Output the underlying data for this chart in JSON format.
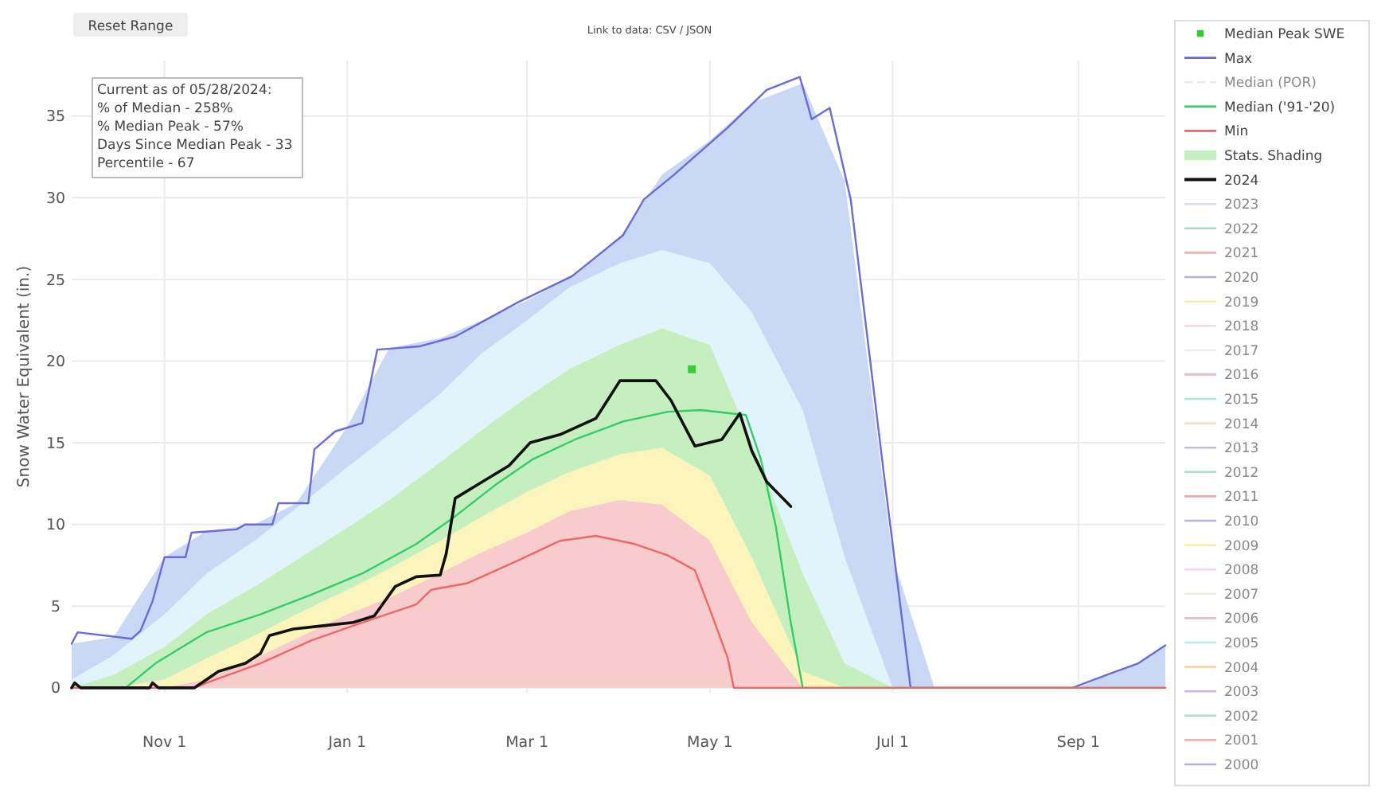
{
  "chart_data": {
    "type": "line",
    "ylabel": "Snow Water Equivalent (in.)",
    "annotations": [
      "Reset Range",
      "Link to data: CSV / JSON",
      "Current as of 05/28/2024:\n% of Median - 258%\n% Median Peak - 57%\nDays Since Median Peak - 33\nPercentile - 67"
    ],
    "xlim": [
      "2023-10-01",
      "2024-09-30"
    ],
    "xticks": [
      {
        "value": "2023-11-01",
        "label": "Nov 1"
      },
      {
        "value": "2024-01-01",
        "label": "Jan 1"
      },
      {
        "value": "2024-03-01",
        "label": "Mar 1"
      },
      {
        "value": "2024-05-01",
        "label": "May 1"
      },
      {
        "value": "2024-07-01",
        "label": "Jul 1"
      },
      {
        "value": "2024-09-01",
        "label": "Sep 1"
      }
    ],
    "ylim": [
      -0.3,
      38.4
    ],
    "yticks": [
      0,
      5,
      10,
      15,
      20,
      25,
      30,
      35
    ],
    "grid": true,
    "legend": "right",
    "series": [
      {
        "type": "area",
        "color": "#c9d8f5",
        "x": [
          "2023-10-01",
          "2023-10-15",
          "2023-11-01",
          "2023-11-15",
          "2023-12-01",
          "2023-12-15",
          "2024-01-01",
          "2024-01-15",
          "2024-02-01",
          "2024-02-15",
          "2024-03-01",
          "2024-03-15",
          "2024-04-01",
          "2024-04-15",
          "2024-05-01",
          "2024-05-15",
          "2024-06-01",
          "2024-06-15",
          "2024-07-01",
          "2024-07-15",
          "2024-09-01",
          "2024-09-12",
          "2024-09-21",
          "2024-09-30"
        ],
        "values": [
          2.7,
          3.1,
          8.0,
          9.6,
          10.0,
          11.3,
          16.0,
          20.8,
          21.4,
          22.5,
          23.7,
          25.1,
          27.6,
          31.4,
          33.5,
          35.8,
          37.0,
          31.0,
          8.0,
          0,
          0,
          0.9,
          1.5,
          2.6
        ]
      },
      {
        "type": "area",
        "color": "#e2f4fb",
        "x": [
          "2023-10-01",
          "2023-10-15",
          "2023-11-01",
          "2023-11-15",
          "2023-12-01",
          "2023-12-15",
          "2024-01-01",
          "2024-01-15",
          "2024-02-01",
          "2024-02-15",
          "2024-03-01",
          "2024-03-15",
          "2024-04-01",
          "2024-04-15",
          "2024-05-01",
          "2024-05-15",
          "2024-06-01",
          "2024-06-15",
          "2024-07-01",
          "2024-09-30"
        ],
        "values": [
          0.5,
          2.0,
          4.5,
          7.0,
          9.0,
          11.0,
          13.5,
          15.5,
          18.0,
          20.5,
          22.5,
          24.5,
          26.0,
          26.8,
          26.0,
          23.0,
          17.0,
          8.0,
          0,
          0
        ]
      },
      {
        "type": "area",
        "color": "#fbf4bd",
        "x": [
          "2023-10-01",
          "2023-10-15",
          "2023-11-01",
          "2023-11-15",
          "2023-12-01",
          "2023-12-15",
          "2024-01-01",
          "2024-01-15",
          "2024-02-01",
          "2024-02-15",
          "2024-03-01",
          "2024-03-15",
          "2024-04-01",
          "2024-04-15",
          "2024-05-01",
          "2024-05-15",
          "2024-06-01",
          "2024-06-15",
          "2024-07-01",
          "2024-09-30"
        ],
        "values": [
          0,
          0,
          0.5,
          1.8,
          3.2,
          4.5,
          6.0,
          7.3,
          9.0,
          10.5,
          12.0,
          13.2,
          14.3,
          14.7,
          13.0,
          8.0,
          1.0,
          0,
          0,
          0
        ]
      },
      {
        "type": "area",
        "color": "#f8cccc",
        "x": [
          "2023-10-01",
          "2023-10-15",
          "2023-11-01",
          "2023-11-15",
          "2023-12-01",
          "2023-12-15",
          "2024-01-01",
          "2024-01-15",
          "2024-02-01",
          "2024-02-15",
          "2024-03-01",
          "2024-03-15",
          "2024-04-01",
          "2024-04-15",
          "2024-05-01",
          "2024-05-15",
          "2024-06-01",
          "2024-06-15",
          "2024-07-01",
          "2024-09-30"
        ],
        "values": [
          0,
          0,
          0,
          0.5,
          1.8,
          3.0,
          4.5,
          5.5,
          7.0,
          8.3,
          9.5,
          10.8,
          11.5,
          11.2,
          9.0,
          4.0,
          0,
          0,
          0,
          0
        ]
      },
      {
        "name": "Median Peak SWE",
        "type": "scatter",
        "marker": "square",
        "color": "#33cc33",
        "x": [
          "2024-04-25"
        ],
        "values": [
          19.5
        ]
      },
      {
        "name": "Max",
        "type": "line",
        "color": "#6a6ad8",
        "x": [
          "2023-10-01",
          "2023-10-03",
          "2023-10-21",
          "2023-10-24",
          "2023-10-28",
          "2023-11-01",
          "2023-11-08",
          "2023-11-10",
          "2023-11-25",
          "2023-11-28",
          "2023-12-07",
          "2023-12-09",
          "2023-12-19",
          "2023-12-21",
          "2023-12-28",
          "2024-01-06",
          "2024-01-11",
          "2024-01-25",
          "2024-02-06",
          "2024-02-27",
          "2024-03-16",
          "2024-04-02",
          "2024-04-09",
          "2024-04-19",
          "2024-05-07",
          "2024-05-20",
          "2024-05-31",
          "2024-06-04",
          "2024-06-10",
          "2024-06-17",
          "2024-06-28",
          "2024-07-07",
          "2024-08-30",
          "2024-09-12",
          "2024-09-21",
          "2024-09-30"
        ],
        "values": [
          2.7,
          3.4,
          3.0,
          3.5,
          5.3,
          8.0,
          8.0,
          9.5,
          9.7,
          10.0,
          10.0,
          11.3,
          11.3,
          14.6,
          15.7,
          16.2,
          20.7,
          20.9,
          21.5,
          23.6,
          25.2,
          27.7,
          29.9,
          31.4,
          34.3,
          36.6,
          37.4,
          34.8,
          35.5,
          29.9,
          13.2,
          0,
          0,
          0.9,
          1.5,
          2.6
        ]
      },
      {
        "name": "Median (POR)",
        "type": "line",
        "line_style": "dashed",
        "color": "#b8e0b8"
      },
      {
        "name": "Median ('91-'20)",
        "type": "line",
        "color": "#33cc66",
        "x": [
          "2023-10-01",
          "2023-10-19",
          "2023-10-29",
          "2023-11-15",
          "2023-12-03",
          "2023-12-20",
          "2024-01-06",
          "2024-01-24",
          "2024-02-06",
          "2024-02-20",
          "2024-03-03",
          "2024-03-17",
          "2024-04-02",
          "2024-04-17",
          "2024-04-28",
          "2024-05-13",
          "2024-05-18",
          "2024-05-23",
          "2024-05-28",
          "2024-06-01",
          "2024-09-30"
        ],
        "values": [
          0,
          0,
          1.5,
          3.4,
          4.5,
          5.7,
          7.0,
          8.8,
          10.5,
          12.5,
          14.0,
          15.2,
          16.3,
          16.9,
          17.0,
          16.7,
          14.0,
          9.9,
          4.0,
          0,
          0
        ]
      },
      {
        "name": "Min",
        "type": "line",
        "color": "#ee6666",
        "x": [
          "2023-10-01",
          "2023-11-11",
          "2023-11-15",
          "2023-12-03",
          "2023-12-20",
          "2024-01-06",
          "2024-01-24",
          "2024-01-29",
          "2024-02-10",
          "2024-02-27",
          "2024-03-12",
          "2024-03-24",
          "2024-04-06",
          "2024-04-17",
          "2024-04-26",
          "2024-05-01",
          "2024-05-07",
          "2024-05-09",
          "2024-09-30"
        ],
        "values": [
          0,
          0,
          0.3,
          1.5,
          2.9,
          4.0,
          5.1,
          6.0,
          6.4,
          7.8,
          9.0,
          9.3,
          8.8,
          8.1,
          7.2,
          4.8,
          1.8,
          0,
          0
        ]
      },
      {
        "name": "Stats. Shading",
        "type": "area",
        "color": "#c6efc0",
        "x": [
          "2023-10-01",
          "2023-10-15",
          "2023-11-01",
          "2023-11-15",
          "2023-12-01",
          "2023-12-15",
          "2024-01-01",
          "2024-01-15",
          "2024-02-01",
          "2024-02-15",
          "2024-03-01",
          "2024-03-15",
          "2024-04-01",
          "2024-04-15",
          "2024-05-01",
          "2024-05-15",
          "2024-06-01",
          "2024-06-15",
          "2024-07-01",
          "2024-09-30"
        ],
        "values": [
          0,
          0.8,
          2.5,
          4.5,
          6.2,
          7.8,
          9.8,
          11.5,
          13.8,
          15.8,
          17.8,
          19.5,
          21.0,
          22.0,
          21.0,
          15.0,
          7.0,
          1.5,
          0,
          0
        ]
      },
      {
        "name": "2024",
        "type": "line",
        "color": "#111111",
        "x": [
          "2023-10-01",
          "2023-10-02",
          "2023-10-04",
          "2023-10-27",
          "2023-10-28",
          "2023-10-30",
          "2023-11-11",
          "2023-11-19",
          "2023-11-28",
          "2023-12-03",
          "2023-12-06",
          "2023-12-14",
          "2023-12-24",
          "2024-01-03",
          "2024-01-10",
          "2024-01-17",
          "2024-01-24",
          "2024-02-01",
          "2024-02-03",
          "2024-02-06",
          "2024-02-15",
          "2024-02-24",
          "2024-03-02",
          "2024-03-12",
          "2024-03-24",
          "2024-04-01",
          "2024-04-13",
          "2024-04-18",
          "2024-04-26",
          "2024-05-05",
          "2024-05-11",
          "2024-05-15",
          "2024-05-20",
          "2024-05-28"
        ],
        "values": [
          0,
          0.3,
          0,
          0,
          0.3,
          0,
          0,
          1.0,
          1.5,
          2.1,
          3.2,
          3.6,
          3.8,
          4.0,
          4.4,
          6.2,
          6.8,
          6.9,
          8.2,
          11.6,
          12.6,
          13.6,
          15.0,
          15.5,
          16.5,
          18.8,
          18.8,
          17.6,
          14.8,
          15.2,
          16.8,
          14.5,
          12.6,
          11.1
        ]
      },
      {
        "name": "2023",
        "type": "line",
        "color": "#c9a0dc"
      },
      {
        "name": "2022",
        "type": "line",
        "color": "#33b38a"
      },
      {
        "name": "2021",
        "type": "line",
        "color": "#e0505a"
      },
      {
        "name": "2020",
        "type": "line",
        "color": "#5555cc"
      },
      {
        "name": "2019",
        "type": "line",
        "color": "#e8e070"
      },
      {
        "name": "2018",
        "type": "line",
        "color": "#e0b8e0"
      },
      {
        "name": "2017",
        "type": "line",
        "color": "#d0e4d0"
      },
      {
        "name": "2016",
        "type": "line",
        "color": "#e06078"
      },
      {
        "name": "2015",
        "type": "line",
        "color": "#40c8c8"
      },
      {
        "name": "2014",
        "type": "line",
        "color": "#f0b080"
      },
      {
        "name": "2013",
        "type": "line",
        "color": "#7070d0"
      },
      {
        "name": "2012",
        "type": "line",
        "color": "#40b890"
      },
      {
        "name": "2011",
        "type": "line",
        "color": "#e04050"
      },
      {
        "name": "2010",
        "type": "line",
        "color": "#6060c8"
      },
      {
        "name": "2009",
        "type": "line",
        "color": "#e8e060"
      },
      {
        "name": "2008",
        "type": "line",
        "color": "#e8a0e0"
      },
      {
        "name": "2007",
        "type": "line",
        "color": "#d0e0b0"
      },
      {
        "name": "2006",
        "type": "line",
        "color": "#d07080"
      },
      {
        "name": "2005",
        "type": "line",
        "color": "#60d0e0"
      },
      {
        "name": "2004",
        "type": "line",
        "color": "#f0a040"
      },
      {
        "name": "2003",
        "type": "line",
        "color": "#a050d0"
      },
      {
        "name": "2002",
        "type": "line",
        "color": "#40c080"
      },
      {
        "name": "2001",
        "type": "line",
        "color": "#e05050"
      },
      {
        "name": "2000",
        "type": "line",
        "color": "#5050c0"
      }
    ]
  }
}
